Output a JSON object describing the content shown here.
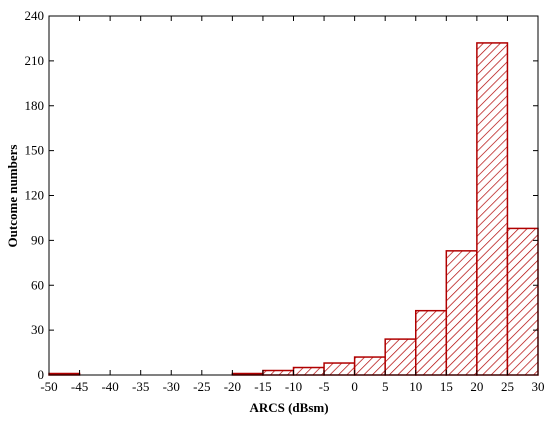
{
  "chart_data": {
    "type": "bar",
    "title": "",
    "xlabel": "ARCS (dBsm)",
    "ylabel": "Outcome numbers",
    "xlim": [
      -50,
      30
    ],
    "ylim": [
      0,
      240
    ],
    "x_ticks": [
      -50,
      -45,
      -40,
      -35,
      -30,
      -25,
      -20,
      -15,
      -10,
      -5,
      0,
      5,
      10,
      15,
      20,
      25,
      30
    ],
    "y_ticks": [
      0,
      30,
      60,
      90,
      120,
      150,
      180,
      210,
      240
    ],
    "bin_width": 5,
    "bins": [
      {
        "x0": -50,
        "x1": -45,
        "value": 1
      },
      {
        "x0": -45,
        "x1": -40,
        "value": 0
      },
      {
        "x0": -40,
        "x1": -35,
        "value": 0
      },
      {
        "x0": -35,
        "x1": -30,
        "value": 0
      },
      {
        "x0": -30,
        "x1": -25,
        "value": 0
      },
      {
        "x0": -25,
        "x1": -20,
        "value": 0
      },
      {
        "x0": -20,
        "x1": -15,
        "value": 1
      },
      {
        "x0": -15,
        "x1": -10,
        "value": 3
      },
      {
        "x0": -10,
        "x1": -5,
        "value": 5
      },
      {
        "x0": -5,
        "x1": 0,
        "value": 8
      },
      {
        "x0": 0,
        "x1": 5,
        "value": 12
      },
      {
        "x0": 5,
        "x1": 10,
        "value": 24
      },
      {
        "x0": 10,
        "x1": 15,
        "value": 43
      },
      {
        "x0": 15,
        "x1": 20,
        "value": 83
      },
      {
        "x0": 20,
        "x1": 25,
        "value": 222
      },
      {
        "x0": 25,
        "x1": 30,
        "value": 98
      }
    ],
    "bar_style": "hatched",
    "colors": {
      "bar_edge": "#b00000",
      "hatch": "#b00000",
      "bar_fill": "#ffffff",
      "axis": "#000000"
    },
    "grid": false,
    "legend": "none"
  }
}
